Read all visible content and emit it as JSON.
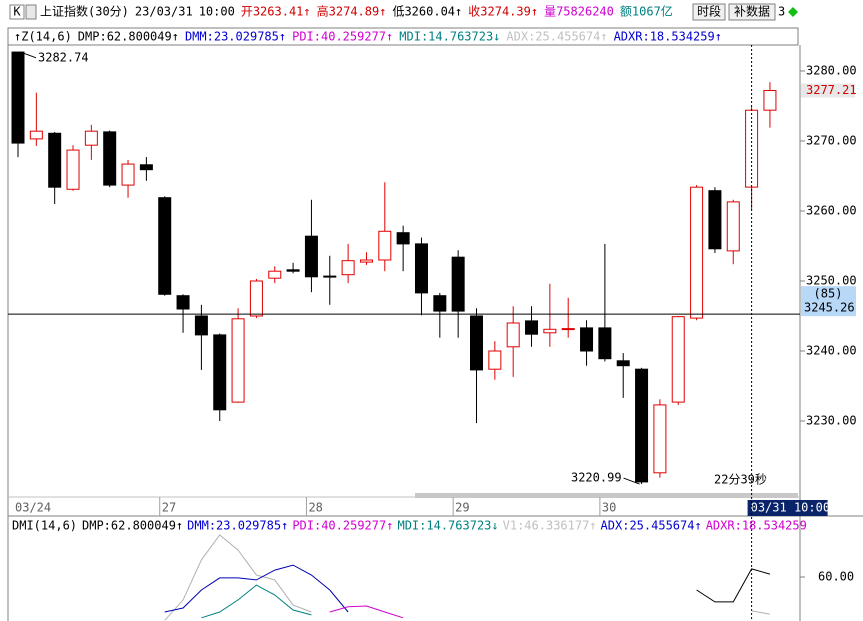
{
  "toolbar": {
    "menu": "K",
    "quote": [
      {
        "text": "上证指数(30分)",
        "color": "#000000"
      },
      {
        "text": "23/03/31",
        "color": "#000000"
      },
      {
        "text": "10:00",
        "color": "#000000"
      },
      {
        "text": "开3263.41↑",
        "color": "#d00000"
      },
      {
        "text": "高3274.89↑",
        "color": "#d00000"
      },
      {
        "text": "低3260.04↑",
        "color": "#000000"
      },
      {
        "text": "收3274.39↑",
        "color": "#d00000"
      },
      {
        "text": "量75826240",
        "color": "#d000d0"
      },
      {
        "text": "额1067亿",
        "color": "#008080"
      }
    ],
    "buttons": [
      "时段",
      "补数据"
    ],
    "page": "3"
  },
  "indicator_bar": [
    {
      "text": "↑Z(14,6)",
      "color": "#000000"
    },
    {
      "text": "DMP:62.800049↑",
      "color": "#000000"
    },
    {
      "text": "DMM:23.029785↑",
      "color": "#0000d0"
    },
    {
      "text": "PDI:40.259277↑",
      "color": "#d000d0"
    },
    {
      "text": "MDI:14.763723↓",
      "color": "#008080"
    },
    {
      "text": "ADX:25.455674↑",
      "color": "#c0c0c0"
    },
    {
      "text": "ADXR:18.534259↑",
      "color": "#0000d0"
    }
  ],
  "chart_data": [
    {
      "type": "candlestick",
      "categories": [
        "03/24",
        null,
        null,
        null,
        null,
        null,
        null,
        null,
        "27",
        null,
        null,
        null,
        null,
        null,
        null,
        null,
        "28",
        null,
        null,
        null,
        null,
        null,
        null,
        null,
        "29",
        null,
        null,
        null,
        null,
        null,
        null,
        null,
        "30",
        null,
        null,
        null,
        null,
        null,
        null,
        null,
        "03/31 10:00",
        null
      ],
      "open": [
        3282.7,
        3270.3,
        3271.1,
        3263.1,
        3269.4,
        3271.3,
        3263.7,
        3266.6,
        3261.9,
        3247.9,
        3245,
        3242.3,
        3232.7,
        3245,
        3250.4,
        3251.6,
        3256.4,
        3250.7,
        3250.9,
        3252.7,
        3253,
        3256.9,
        3255.3,
        3247.9,
        3253.4,
        3245,
        3237.4,
        3240.6,
        3244.3,
        3242.6,
        3243.1,
        3243.3,
        3243.3,
        3238.6,
        3237.4,
        3222.6,
        3232.7,
        3244.7,
        3262.9,
        3254.3,
        3263.41,
        3274.4
      ],
      "high": [
        3282.74,
        3276.9,
        3271.3,
        3269.4,
        3272.3,
        3271.5,
        3267.3,
        3267.7,
        3262.1,
        3248.1,
        3246.6,
        3242.5,
        3246.1,
        3250.3,
        3252.1,
        3252.6,
        3261.6,
        3253.6,
        3255.3,
        3254.1,
        3264.1,
        3257.9,
        3256.2,
        3248.3,
        3254.4,
        3246.1,
        3241.4,
        3246.4,
        3246.4,
        3249.6,
        3247.6,
        3244.4,
        3255.3,
        3239.7,
        3237.6,
        3233.1,
        3245,
        3263.7,
        3263.4,
        3261.6,
        3274.89,
        3278.4
      ],
      "low": [
        3267.7,
        3269.3,
        3261,
        3262.9,
        3267.3,
        3263.4,
        3261.9,
        3264.3,
        3247.9,
        3242.6,
        3237.3,
        3230,
        3232.6,
        3244.7,
        3249.7,
        3251.1,
        3248.4,
        3246.6,
        3249.7,
        3252.3,
        3251.4,
        3251.4,
        3245.1,
        3241.9,
        3241.9,
        3229.7,
        3235.9,
        3236.3,
        3240.6,
        3240.6,
        3241.9,
        3237.9,
        3238.5,
        3233.3,
        3220.99,
        3221.9,
        3232.3,
        3244.4,
        3254,
        3252.4,
        3260.04,
        3271.9
      ],
      "close": [
        3269.7,
        3271.4,
        3263.4,
        3268.7,
        3271.4,
        3263.7,
        3266.7,
        3265.9,
        3248.1,
        3246,
        3242.3,
        3231.6,
        3244.6,
        3250,
        3251.4,
        3251.4,
        3250.6,
        3250.6,
        3252.9,
        3253,
        3257.1,
        3255.3,
        3248.3,
        3245.7,
        3245.7,
        3237.3,
        3240,
        3244,
        3242.4,
        3243.1,
        3243.2,
        3240,
        3238.9,
        3237.9,
        3221.3,
        3232.3,
        3244.9,
        3263.4,
        3254.6,
        3261.3,
        3274.39,
        3277.21
      ],
      "up_color": "#e00000",
      "down_color": "#000000",
      "ylim": [
        3219.43,
        3283.71
      ],
      "yticks": [
        {
          "value": 3230,
          "label": "3230.00"
        },
        {
          "value": 3240,
          "label": "3240.00"
        },
        {
          "value": 3250,
          "label": "3250.00"
        },
        {
          "value": 3260,
          "label": "3260.00"
        },
        {
          "value": 3270,
          "label": "3270.00"
        },
        {
          "value": 3280,
          "label": "3280.00"
        }
      ],
      "crosshair": {
        "value": 3245.26,
        "tag": "(85)"
      },
      "annotation": "22分39秒"
    },
    {
      "type": "line",
      "title": "DMI(14,6)",
      "legend": [
        {
          "text": "DMP:62.800049↑",
          "color": "#000000"
        },
        {
          "text": "DMM:23.029785↑",
          "color": "#0000d0"
        },
        {
          "text": "PDI:40.259277↑",
          "color": "#d000d0"
        },
        {
          "text": "MDI:14.763723↓",
          "color": "#008080"
        },
        {
          "text": "V1:46.336177↑",
          "color": "#c0c0c0"
        },
        {
          "text": "ADX:25.455674↑",
          "color": "#0000d0"
        },
        {
          "text": "ADXR:18.534259",
          "color": "#d000d0"
        }
      ],
      "series": [
        {
          "color": "#b0b0b0",
          "values": [
            null,
            null,
            null,
            null,
            null,
            null,
            null,
            null,
            45,
            52.1,
            65.9,
            74.5,
            69.3,
            60.7,
            59,
            50.3,
            47.9,
            null,
            null,
            null,
            null,
            null,
            null,
            null,
            null,
            null,
            null,
            null,
            null,
            null,
            null,
            null,
            null,
            null,
            null,
            null,
            null,
            null,
            null,
            null,
            48.3,
            47.2
          ]
        },
        {
          "color": "#0000b0",
          "values": [
            null,
            null,
            null,
            null,
            null,
            null,
            null,
            null,
            47.9,
            49.3,
            55.5,
            59.7,
            59.7,
            59,
            62.4,
            64.1,
            60.7,
            55.5,
            47.9,
            null,
            null,
            null,
            null,
            null,
            null,
            null,
            null,
            null,
            null,
            null,
            null,
            null,
            null,
            null,
            null,
            null,
            null,
            null,
            null,
            null,
            null,
            null
          ]
        },
        {
          "color": "#008080",
          "values": [
            null,
            null,
            null,
            null,
            null,
            null,
            null,
            null,
            null,
            null,
            45.9,
            47.9,
            52.1,
            57.2,
            53.8,
            48.6,
            46.9,
            null,
            null,
            null,
            null,
            null,
            null,
            null,
            null,
            null,
            null,
            null,
            null,
            null,
            null,
            null,
            null,
            null,
            null,
            null,
            null,
            null,
            null,
            null,
            null,
            null
          ]
        },
        {
          "color": "#d000d0",
          "values": [
            null,
            null,
            null,
            null,
            null,
            null,
            null,
            null,
            null,
            null,
            null,
            null,
            null,
            null,
            null,
            null,
            null,
            47.9,
            49.7,
            50,
            47.9,
            45.9,
            null,
            null,
            null,
            null,
            null,
            null,
            null,
            null,
            null,
            null,
            null,
            null,
            null,
            null,
            null,
            null,
            null,
            null,
            null,
            null
          ]
        },
        {
          "color": "#000000",
          "values": [
            null,
            null,
            null,
            null,
            null,
            null,
            null,
            null,
            null,
            null,
            null,
            null,
            null,
            null,
            null,
            null,
            null,
            null,
            null,
            null,
            null,
            null,
            null,
            null,
            null,
            null,
            null,
            null,
            null,
            null,
            null,
            null,
            null,
            null,
            null,
            null,
            null,
            55.5,
            51.4,
            51.4,
            62.8,
            61
          ]
        }
      ],
      "ylim": [
        44.8,
        79.7
      ],
      "yticks": [
        {
          "value": 60,
          "label": "60.00"
        }
      ]
    }
  ]
}
